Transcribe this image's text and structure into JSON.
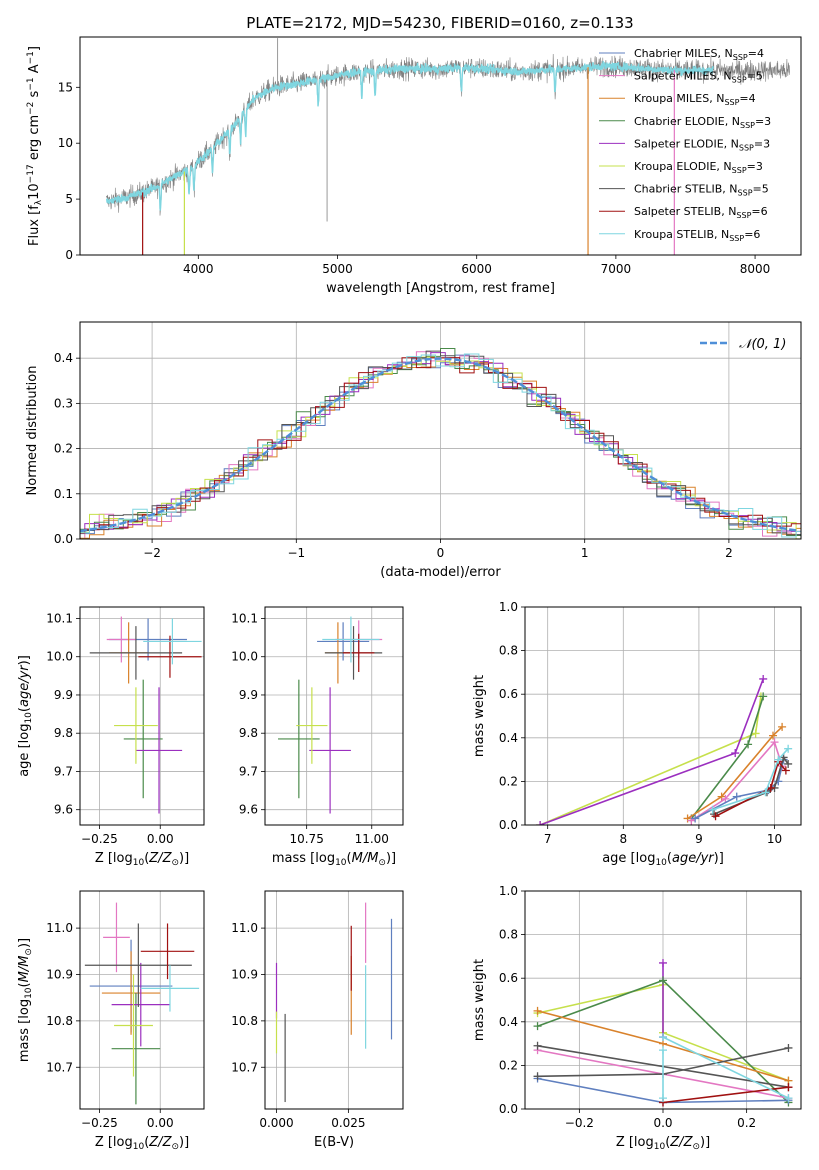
{
  "figure_title": "PLATE=2172, MJD=54230, FIBERID=0160, z=0.133",
  "colors": {
    "Chabrier MILES": "#5f7fbf",
    "Salpeter MILES": "#e377c2",
    "Kroupa MILES": "#d9822b",
    "Chabrier ELODIE": "#4a8a4a",
    "Salpeter ELODIE": "#9b2fbf",
    "Kroupa ELODIE": "#c6e04c",
    "Chabrier STELIB": "#555555",
    "Salpeter STELIB": "#a01010",
    "Kroupa STELIB": "#7fd6e0"
  },
  "chart_data": [
    {
      "id": "spectrum",
      "type": "line",
      "title": "PLATE=2172, MJD=54230, FIBERID=0160, z=0.133",
      "xlabel": "wavelength [Angstrom, rest frame]",
      "ylabel": "Flux [f_λ 10^-17 erg cm^-2 s^-1 A^-1]",
      "xlim": [
        3150,
        8330
      ],
      "ylim": [
        0,
        19.5
      ],
      "xticks": [
        4000,
        5000,
        6000,
        7000,
        8000
      ],
      "yticks": [
        0,
        5,
        10,
        15
      ],
      "grid": false,
      "legend_position": "upper-right",
      "legend": [
        {
          "label": "Chabrier MILES, N",
          "sub": "SSP",
          "tail": "=4",
          "model": "Chabrier MILES"
        },
        {
          "label": "Salpeter MILES, N",
          "sub": "SSP",
          "tail": "=5",
          "model": "Salpeter MILES"
        },
        {
          "label": "Kroupa MILES, N",
          "sub": "SSP",
          "tail": "=4",
          "model": "Kroupa MILES"
        },
        {
          "label": "Chabrier ELODIE, N",
          "sub": "SSP",
          "tail": "=3",
          "model": "Chabrier ELODIE"
        },
        {
          "label": "Salpeter ELODIE, N",
          "sub": "SSP",
          "tail": "=3",
          "model": "Salpeter ELODIE"
        },
        {
          "label": "Kroupa ELODIE, N",
          "sub": "SSP",
          "tail": "=3",
          "model": "Kroupa ELODIE"
        },
        {
          "label": "Chabrier STELIB, N",
          "sub": "SSP",
          "tail": "=5",
          "model": "Chabrier STELIB"
        },
        {
          "label": "Salpeter STELIB, N",
          "sub": "SSP",
          "tail": "=6",
          "model": "Salpeter STELIB"
        },
        {
          "label": "Kroupa STELIB, N",
          "sub": "SSP",
          "tail": "=6",
          "model": "Kroupa STELIB"
        }
      ],
      "continuum": {
        "x": [
          3350,
          3500,
          3650,
          3800,
          3950,
          4100,
          4250,
          4400,
          4550,
          4700,
          4900,
          5100,
          5300,
          5500,
          5700,
          5900,
          6100,
          6300,
          6500,
          6700,
          6900,
          7100,
          7300,
          7500
        ],
        "y": [
          4.8,
          5.2,
          5.8,
          6.8,
          7.8,
          9.5,
          11.5,
          14.0,
          15.0,
          15.3,
          15.8,
          16.3,
          16.5,
          16.7,
          16.6,
          16.8,
          16.6,
          16.4,
          16.6,
          16.7,
          16.9,
          16.8,
          16.6,
          16.5
        ]
      },
      "model_cutoffs": [
        {
          "model": "Kroupa ELODIE",
          "x": 3900
        },
        {
          "model": "Kroupa MILES",
          "x": 6800
        },
        {
          "model": "Salpeter MILES",
          "x": 7420
        },
        {
          "model": "Salpeter STELIB",
          "x": 3600
        }
      ]
    },
    {
      "id": "residuals",
      "type": "line",
      "xlabel": "(data-model)/error",
      "ylabel": "Normed distribution",
      "xlim": [
        -2.5,
        2.5
      ],
      "ylim": [
        0,
        0.48
      ],
      "xticks": [
        -2,
        -1,
        0,
        1,
        2
      ],
      "yticks": [
        0.0,
        0.1,
        0.2,
        0.3,
        0.4
      ],
      "grid": true,
      "legend_position": "upper-right",
      "legend_label": "N(0,1)",
      "gaussian_color": "#4f8fd8"
    },
    {
      "id": "age_vs_Z",
      "type": "scatter",
      "xlabel": "Z [log10(Z/Z⊙)]",
      "ylabel": "age [log10(age/yr)]",
      "xlim": [
        -0.33,
        0.18
      ],
      "ylim": [
        9.56,
        10.13
      ],
      "xticks": [
        -0.25,
        0.0
      ],
      "yticks": [
        9.6,
        9.7,
        9.8,
        9.9,
        10.0,
        10.1
      ],
      "grid": true,
      "points": [
        {
          "model": "Chabrier MILES",
          "x": -0.05,
          "xerr": 0.16,
          "y": 10.045,
          "yerr": 0.055
        },
        {
          "model": "Salpeter MILES",
          "x": -0.16,
          "xerr": 0.06,
          "y": 10.045,
          "yerr": 0.06
        },
        {
          "model": "Kroupa MILES",
          "x": -0.13,
          "xerr": 0.08,
          "y": 10.01,
          "yerr": 0.08
        },
        {
          "model": "Chabrier ELODIE",
          "x": -0.07,
          "xerr": 0.08,
          "y": 9.785,
          "yerr": 0.155
        },
        {
          "model": "Salpeter ELODIE",
          "x": -0.005,
          "xerr": 0.095,
          "y": 9.755,
          "yerr": 0.165
        },
        {
          "model": "Kroupa ELODIE",
          "x": -0.1,
          "xerr": 0.09,
          "y": 9.82,
          "yerr": 0.1
        },
        {
          "model": "Chabrier STELIB",
          "x": -0.1,
          "xerr": 0.19,
          "y": 10.01,
          "yerr": 0.07
        },
        {
          "model": "Salpeter STELIB",
          "x": 0.04,
          "xerr": 0.13,
          "y": 10.0,
          "yerr": 0.055
        },
        {
          "model": "Kroupa STELIB",
          "x": 0.05,
          "xerr": 0.12,
          "y": 10.04,
          "yerr": 0.06
        }
      ]
    },
    {
      "id": "age_vs_mass",
      "type": "scatter",
      "xlabel": "mass [log10(M/M⊙)]",
      "ylabel": "",
      "xlim": [
        10.59,
        11.12
      ],
      "ylim": [
        9.56,
        10.13
      ],
      "xticks": [
        10.75,
        11.0
      ],
      "yticks": [
        9.6,
        9.7,
        9.8,
        9.9,
        10.0,
        10.1
      ],
      "grid": true,
      "points": [
        {
          "model": "Chabrier MILES",
          "x": 10.89,
          "xerr": 0.1,
          "y": 10.04,
          "yerr": 0.05
        },
        {
          "model": "Salpeter MILES",
          "x": 10.95,
          "xerr": 0.09,
          "y": 10.045,
          "yerr": 0.05
        },
        {
          "model": "Kroupa MILES",
          "x": 10.87,
          "xerr": 0.05,
          "y": 10.01,
          "yerr": 0.08
        },
        {
          "model": "Chabrier ELODIE",
          "x": 10.72,
          "xerr": 0.08,
          "y": 9.785,
          "yerr": 0.155
        },
        {
          "model": "Salpeter ELODIE",
          "x": 10.84,
          "xerr": 0.08,
          "y": 9.755,
          "yerr": 0.165
        },
        {
          "model": "Kroupa ELODIE",
          "x": 10.77,
          "xerr": 0.06,
          "y": 9.82,
          "yerr": 0.1
        },
        {
          "model": "Chabrier STELIB",
          "x": 10.93,
          "xerr": 0.11,
          "y": 10.01,
          "yerr": 0.07
        },
        {
          "model": "Salpeter STELIB",
          "x": 10.95,
          "xerr": 0.06,
          "y": 10.01,
          "yerr": 0.05
        },
        {
          "model": "Kroupa STELIB",
          "x": 10.92,
          "xerr": 0.11,
          "y": 10.045,
          "yerr": 0.06
        }
      ]
    },
    {
      "id": "weight_vs_age",
      "type": "line",
      "xlabel": "age [log10(age/yr)]",
      "ylabel": "mass weight",
      "xlim": [
        6.7,
        10.35
      ],
      "ylim": [
        0,
        1.0
      ],
      "xticks": [
        7,
        8,
        9,
        10
      ],
      "yticks": [
        0.0,
        0.2,
        0.4,
        0.6,
        0.8,
        1.0
      ],
      "grid": true,
      "series": [
        {
          "model": "Kroupa ELODIE",
          "x": [
            6.9,
            9.75,
            9.82
          ],
          "y": [
            0.0,
            0.42,
            0.59
          ]
        },
        {
          "model": "Salpeter ELODIE",
          "x": [
            6.9,
            9.48,
            9.85
          ],
          "y": [
            0.0,
            0.33,
            0.67
          ]
        },
        {
          "model": "Chabrier ELODIE",
          "x": [
            8.9,
            9.65,
            9.85
          ],
          "y": [
            0.03,
            0.37,
            0.59
          ]
        },
        {
          "model": "Kroupa MILES",
          "x": [
            8.85,
            9.3,
            9.98,
            10.1
          ],
          "y": [
            0.03,
            0.13,
            0.41,
            0.45
          ]
        },
        {
          "model": "Salpeter MILES",
          "x": [
            8.9,
            9.35,
            10.0,
            10.1
          ],
          "y": [
            0.02,
            0.12,
            0.38,
            0.27
          ]
        },
        {
          "model": "Chabrier MILES",
          "x": [
            8.95,
            9.5,
            9.92,
            10.05,
            10.12
          ],
          "y": [
            0.03,
            0.13,
            0.16,
            0.2,
            0.3
          ]
        },
        {
          "model": "Chabrier STELIB",
          "x": [
            9.2,
            9.9,
            10.0,
            10.12,
            10.18
          ],
          "y": [
            0.05,
            0.15,
            0.17,
            0.31,
            0.28
          ]
        },
        {
          "model": "Salpeter STELIB",
          "x": [
            9.22,
            9.95,
            10.05,
            10.15
          ],
          "y": [
            0.04,
            0.17,
            0.29,
            0.25
          ]
        },
        {
          "model": "Kroupa STELIB",
          "x": [
            9.18,
            9.88,
            10.05,
            10.18
          ],
          "y": [
            0.07,
            0.15,
            0.3,
            0.35
          ]
        }
      ]
    },
    {
      "id": "mass_vs_Z",
      "type": "scatter",
      "xlabel": "Z [log10(Z/Z⊙)]",
      "ylabel": "mass [log10(M/M⊙)]",
      "xlim": [
        -0.33,
        0.18
      ],
      "ylim": [
        10.61,
        11.08
      ],
      "xticks": [
        -0.25,
        0.0
      ],
      "yticks": [
        10.7,
        10.8,
        10.9,
        11.0
      ],
      "grid": true,
      "points": [
        {
          "model": "Chabrier MILES",
          "x": -0.12,
          "xerr": 0.17,
          "y": 10.875,
          "yerr": 0.1
        },
        {
          "model": "Salpeter MILES",
          "x": -0.18,
          "xerr": 0.055,
          "y": 10.98,
          "yerr": 0.075
        },
        {
          "model": "Kroupa MILES",
          "x": -0.12,
          "xerr": 0.12,
          "y": 10.86,
          "yerr": 0.09
        },
        {
          "model": "Chabrier ELODIE",
          "x": -0.1,
          "xerr": 0.1,
          "y": 10.74,
          "yerr": 0.12
        },
        {
          "model": "Salpeter ELODIE",
          "x": -0.08,
          "xerr": 0.12,
          "y": 10.835,
          "yerr": 0.09
        },
        {
          "model": "Kroupa ELODIE",
          "x": -0.11,
          "xerr": 0.08,
          "y": 10.79,
          "yerr": 0.11
        },
        {
          "model": "Chabrier STELIB",
          "x": -0.09,
          "xerr": 0.22,
          "y": 10.92,
          "yerr": 0.09
        },
        {
          "model": "Salpeter STELIB",
          "x": 0.03,
          "xerr": 0.11,
          "y": 10.95,
          "yerr": 0.06
        },
        {
          "model": "Kroupa STELIB",
          "x": 0.04,
          "xerr": 0.12,
          "y": 10.87,
          "yerr": 0.05
        }
      ]
    },
    {
      "id": "mass_vs_ebv",
      "type": "scatter",
      "xlabel": "E(B-V)",
      "ylabel": "",
      "xlim": [
        -0.004,
        0.044
      ],
      "ylim": [
        10.61,
        11.08
      ],
      "xticks": [
        0.0,
        0.025
      ],
      "yticks": [
        10.7,
        10.8,
        10.9,
        11.0
      ],
      "grid": true,
      "points": [
        {
          "model": "Salpeter ELODIE",
          "x": 0.0,
          "y": 10.865,
          "yerr": 0.06
        },
        {
          "model": "Kroupa ELODIE",
          "x": 0.0,
          "y": 10.775,
          "yerr": 0.045
        },
        {
          "model": "Chabrier STELIB",
          "x": 0.003,
          "y": 10.72,
          "yerr": 0.095
        },
        {
          "model": "Kroupa MILES",
          "x": 0.026,
          "y": 10.855,
          "yerr": 0.085
        },
        {
          "model": "Salpeter STELIB",
          "x": 0.026,
          "y": 10.935,
          "yerr": 0.07
        },
        {
          "model": "Salpeter MILES",
          "x": 0.031,
          "y": 10.99,
          "yerr": 0.065
        },
        {
          "model": "Kroupa STELIB",
          "x": 0.031,
          "y": 10.83,
          "yerr": 0.09
        },
        {
          "model": "Chabrier MILES",
          "x": 0.04,
          "y": 10.89,
          "yerr": 0.13
        }
      ]
    },
    {
      "id": "weight_vs_Z",
      "type": "line",
      "xlabel": "Z [log10(Z/Z⊙)]",
      "ylabel": "mass weight",
      "xlim": [
        -0.33,
        0.33
      ],
      "ylim": [
        0,
        1.0
      ],
      "xticks": [
        -0.2,
        0.0,
        0.2
      ],
      "yticks": [
        0.0,
        0.2,
        0.4,
        0.6,
        0.8,
        1.0
      ],
      "grid": true,
      "series": [
        {
          "model": "Kroupa ELODIE",
          "x": [
            -0.3,
            0.0,
            0.0,
            0.3
          ],
          "y": [
            0.44,
            0.57,
            0.35,
            0.13
          ]
        },
        {
          "model": "Salpeter ELODIE",
          "x": [
            0.0,
            0.0
          ],
          "y": [
            0.67,
            0.33
          ]
        },
        {
          "model": "Chabrier ELODIE",
          "x": [
            -0.3,
            0.0,
            0.3
          ],
          "y": [
            0.38,
            0.59,
            0.03
          ]
        },
        {
          "model": "Kroupa MILES",
          "x": [
            -0.3,
            0.0,
            0.3
          ],
          "y": [
            0.45,
            0.3,
            0.13
          ]
        },
        {
          "model": "Salpeter MILES",
          "x": [
            -0.3,
            0.3
          ],
          "y": [
            0.27,
            0.05
          ]
        },
        {
          "model": "Chabrier MILES",
          "x": [
            -0.3,
            0.0,
            0.3
          ],
          "y": [
            0.14,
            0.03,
            0.04
          ]
        },
        {
          "model": "Chabrier STELIB",
          "x": [
            -0.3,
            0.0,
            0.3
          ],
          "y": [
            0.15,
            0.16,
            0.28
          ]
        },
        {
          "model": "Chabrier STELIB",
          "x": [
            -0.3,
            0.3
          ],
          "y": [
            0.29,
            0.1
          ]
        },
        {
          "model": "Salpeter STELIB",
          "x": [
            0.0,
            0.3
          ],
          "y": [
            0.03,
            0.1
          ]
        },
        {
          "model": "Kroupa STELIB",
          "x": [
            0.0,
            0.3
          ],
          "y": [
            0.33,
            0.05
          ]
        },
        {
          "model": "Kroupa STELIB",
          "x": [
            0.0,
            0.0
          ],
          "y": [
            0.27,
            0.05
          ]
        }
      ]
    }
  ]
}
